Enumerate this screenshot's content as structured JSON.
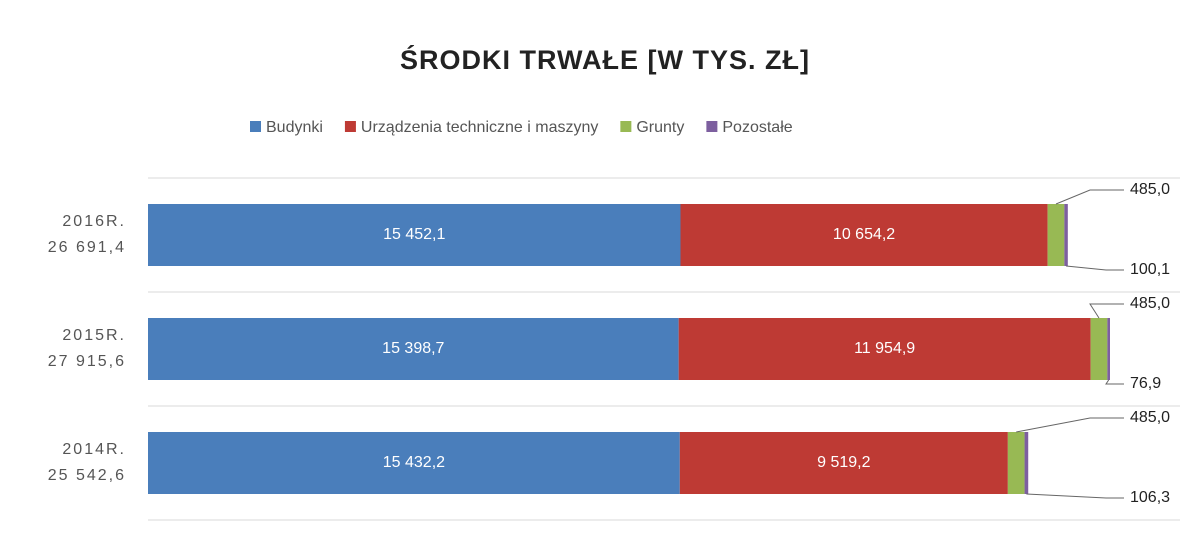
{
  "chart_data": {
    "type": "stacked-bar-horizontal",
    "title": "ŚRODKI TRWAŁE [W TYS. ZŁ]",
    "categories": [
      "2016R.",
      "2015R.",
      "2014R."
    ],
    "totals": [
      26691.4,
      27915.6,
      25542.6
    ],
    "total_labels": [
      "26 691,4",
      "27 915,6",
      "25 542,6"
    ],
    "series": [
      {
        "name": "Budynki",
        "color": "#4a7ebb",
        "values": [
          15452.1,
          15398.7,
          15432.2
        ],
        "value_labels": [
          "15 452,1",
          "15 398,7",
          "15 432,2"
        ]
      },
      {
        "name": "Urządzenia techniczne i maszyny",
        "color": "#be3a34",
        "values": [
          10654.2,
          11954.9,
          9519.2
        ],
        "value_labels": [
          "10 654,2",
          "11 954,9",
          "9 519,2"
        ]
      },
      {
        "name": "Grunty",
        "color": "#98b954",
        "values": [
          485.0,
          485.0,
          485.0
        ],
        "value_labels": [
          "485,0",
          "485,0",
          "485,0"
        ]
      },
      {
        "name": "Pozostałe",
        "color": "#7d5f9f",
        "values": [
          100.1,
          76.9,
          106.3
        ],
        "value_labels": [
          "100,1",
          "76,9",
          "106,3"
        ]
      }
    ],
    "legend": "top"
  }
}
